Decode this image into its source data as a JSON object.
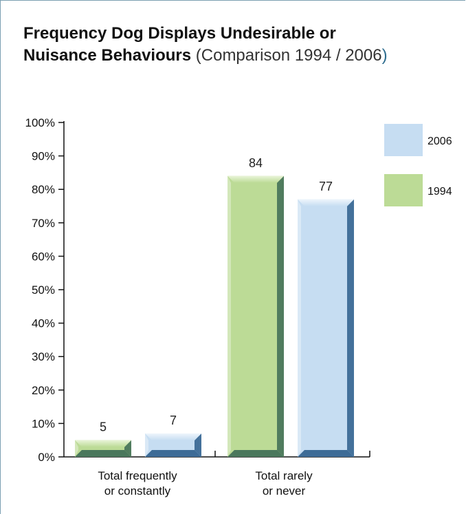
{
  "header": {
    "title_bold_line1": "Frequency Dog Displays Undesirable or",
    "title_bold_line2": "Nuisance Behaviours",
    "title_light": "(Comparison 1994 / 2006",
    "title_close": ")"
  },
  "chart_data": {
    "type": "bar",
    "title": "Frequency Dog Displays Undesirable or Nuisance Behaviours (Comparison 1994 / 2006)",
    "categories": [
      "Total frequently or constantly",
      "Total rarely or never"
    ],
    "category_lines": [
      [
        "Total frequently",
        "or constantly"
      ],
      [
        "Total rarely",
        "or never"
      ]
    ],
    "series": [
      {
        "name": "1994",
        "values": [
          5,
          84
        ],
        "color": "#bcdb96",
        "edge_color": "#3d6b55"
      },
      {
        "name": "2006",
        "values": [
          7,
          77
        ],
        "color": "#c6ddf2",
        "edge_color": "#2d5e8c"
      }
    ],
    "ylim": [
      0,
      100
    ],
    "y_ticks": [
      "0%",
      "10%",
      "20%",
      "30%",
      "40%",
      "50%",
      "60%",
      "70%",
      "80%",
      "90%",
      "100%"
    ],
    "legend": [
      {
        "label": "2006",
        "color": "#c6ddf2"
      },
      {
        "label": "1994",
        "color": "#bcdb96"
      }
    ],
    "legend_position": "top-right",
    "grid": false,
    "data_labels": true
  }
}
